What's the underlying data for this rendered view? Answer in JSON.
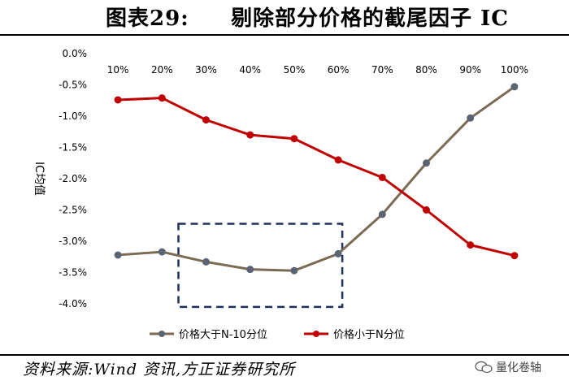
{
  "header": {
    "figure_number": "图表29:",
    "title": "剔除部分价格的截尾因子 IC"
  },
  "footer": {
    "source": "资料来源:Wind 资讯,方正证券研究所",
    "watermark": "量化卷轴"
  },
  "chart_data": {
    "type": "line",
    "title": "",
    "xlabel": "",
    "ylabel": "IC均值",
    "categories": [
      "10%",
      "20%",
      "30%",
      "40%",
      "50%",
      "60%",
      "70%",
      "80%",
      "90%",
      "100%"
    ],
    "ylim": [
      -0.04,
      0.0
    ],
    "yticks": [
      "0.0%",
      "-0.5%",
      "-1.0%",
      "-1.5%",
      "-2.0%",
      "-2.5%",
      "-3.0%",
      "-3.5%",
      "-4.0%"
    ],
    "ytick_values": [
      0.0,
      -0.005,
      -0.01,
      -0.015,
      -0.02,
      -0.025,
      -0.03,
      -0.035,
      -0.04
    ],
    "grid": false,
    "legend_position": "bottom",
    "series": [
      {
        "name": "价格大于N-10分位",
        "color": "#7b6b55",
        "marker_color": "#5b6472",
        "values": [
          -0.0322,
          -0.0317,
          -0.0333,
          -0.0345,
          -0.0347,
          -0.032,
          -0.0257,
          -0.0175,
          -0.0103,
          -0.0053
        ]
      },
      {
        "name": "价格小于N分位",
        "color": "#c00000",
        "marker_color": "#c00000",
        "values": [
          -0.0074,
          -0.0071,
          -0.0106,
          -0.013,
          -0.0136,
          -0.017,
          -0.0198,
          -0.025,
          -0.0306,
          -0.0323
        ]
      }
    ],
    "annotation": {
      "type": "dashed-box",
      "from_category": "30%",
      "to_category": "60%",
      "color": "#1f2f5c"
    }
  }
}
